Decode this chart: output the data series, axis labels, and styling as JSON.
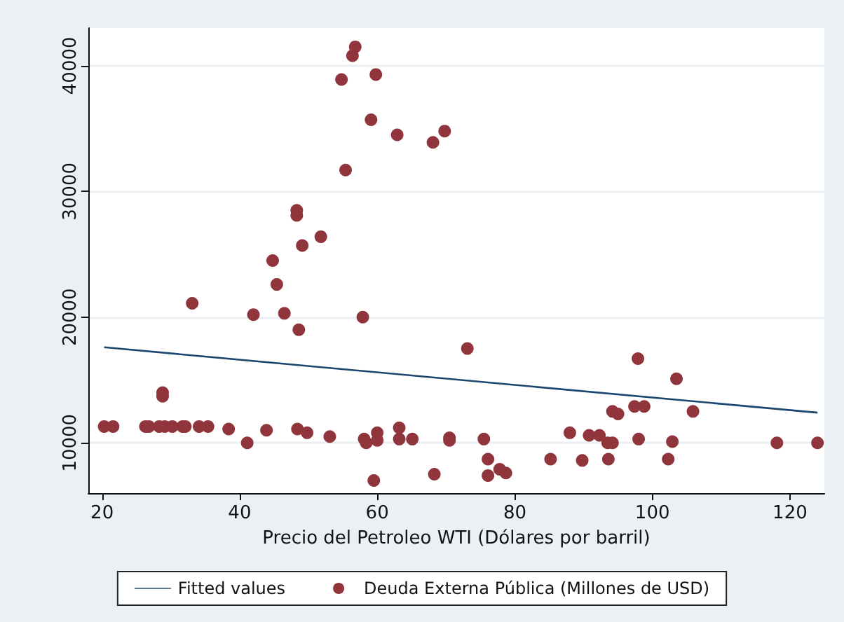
{
  "chart_data": {
    "type": "scatter",
    "xlabel": "Precio del Petroleo WTI (Dólares por barril)",
    "xlim": [
      18,
      125
    ],
    "xticks": [
      20,
      40,
      60,
      80,
      100,
      120
    ],
    "ylim": [
      6000,
      43000
    ],
    "yticks": [
      10000,
      20000,
      30000,
      40000
    ],
    "grid": "y",
    "legend": "bottom",
    "marker": "circle",
    "series": [
      {
        "name": "Fitted values",
        "type": "line",
        "color": "#1a476f",
        "marker": "none",
        "x": [
          20.3,
          124
        ],
        "values": [
          17600,
          12400
        ]
      },
      {
        "name": "Deuda Externa Pública (Millones de USD)",
        "color": "#90353b",
        "x": [
          56.8,
          56.4,
          54.8,
          59.8,
          59.1,
          62.9,
          55.4,
          48.3,
          48.3,
          51.8,
          49.1,
          44.8,
          45.4,
          33.1,
          68.1,
          69.8,
          42.0,
          46.5,
          48.6,
          57.9,
          28.8,
          28.8,
          20.3,
          21.6,
          26.3,
          26.8,
          28.3,
          29.1,
          30.2,
          31.7,
          32.1,
          34.1,
          35.4,
          38.4,
          41.1,
          43.9,
          48.4,
          49.8,
          53.1,
          58.1,
          58.4,
          60.0,
          60.0,
          59.5,
          63.2,
          63.2,
          65.1,
          73.1,
          70.5,
          70.5,
          68.3,
          75.5,
          76.1,
          76.1,
          77.8,
          78.7,
          85.2,
          88.0,
          89.8,
          90.8,
          92.3,
          93.5,
          94.2,
          93.6,
          94.2,
          95.0,
          97.4,
          98.8,
          97.9,
          98.0,
          102.9,
          102.3,
          103.5,
          105.9,
          118.1,
          124
        ],
        "values": [
          41500,
          40800,
          38900,
          39300,
          35700,
          34500,
          31700,
          28500,
          28100,
          26400,
          25700,
          24500,
          22600,
          21100,
          33900,
          34800,
          20200,
          20300,
          19000,
          20000,
          14000,
          13700,
          11300,
          11300,
          11300,
          11300,
          11300,
          11300,
          11300,
          11300,
          11300,
          11300,
          11300,
          11100,
          10000,
          11000,
          11100,
          10800,
          10500,
          10300,
          10000,
          10800,
          10200,
          7000,
          11200,
          10300,
          10300,
          17500,
          10400,
          10200,
          7500,
          10300,
          8700,
          7400,
          7900,
          7600,
          8700,
          10800,
          8600,
          10600,
          10600,
          10000,
          10000,
          8700,
          12500,
          12300,
          12900,
          12900,
          16700,
          10300,
          10100,
          8700,
          15100,
          12500,
          10000,
          10000
        ]
      }
    ]
  }
}
